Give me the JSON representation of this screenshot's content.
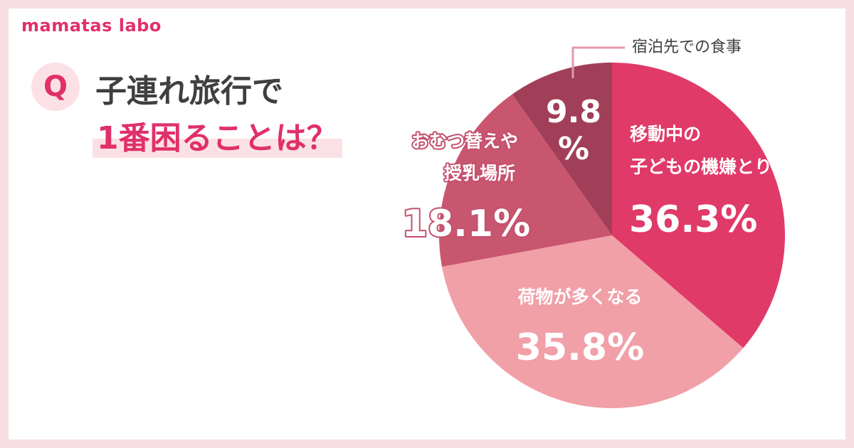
{
  "brand": "mamatas labo",
  "question": {
    "badge": "Q",
    "line1": "子連れ旅行で",
    "line2": "1番困ることは？"
  },
  "chart_data": {
    "type": "pie",
    "slices": [
      {
        "label_lines": [
          "移動中の",
          "子どもの機嫌とり"
        ],
        "value": 36.3,
        "value_text": "36.3%",
        "color": "#e03a68"
      },
      {
        "label_lines": [
          "荷物が多くなる"
        ],
        "value": 35.8,
        "value_text": "35.8%",
        "color": "#f1a0a8"
      },
      {
        "label_lines": [
          "おむつ替えや",
          "授乳場所"
        ],
        "value": 18.1,
        "value_text": "18.1%",
        "color": "#c9566f"
      },
      {
        "label_lines": [
          "宿泊先での食事"
        ],
        "value": 9.8,
        "value_text_lines": [
          "9.8",
          "%"
        ],
        "color": "#a13f58"
      }
    ]
  },
  "colors": {
    "accent": "#e0306a",
    "background": "#f7dfe4",
    "label_dark": "#3f3f3f",
    "leader_line": "#e39aaa"
  }
}
